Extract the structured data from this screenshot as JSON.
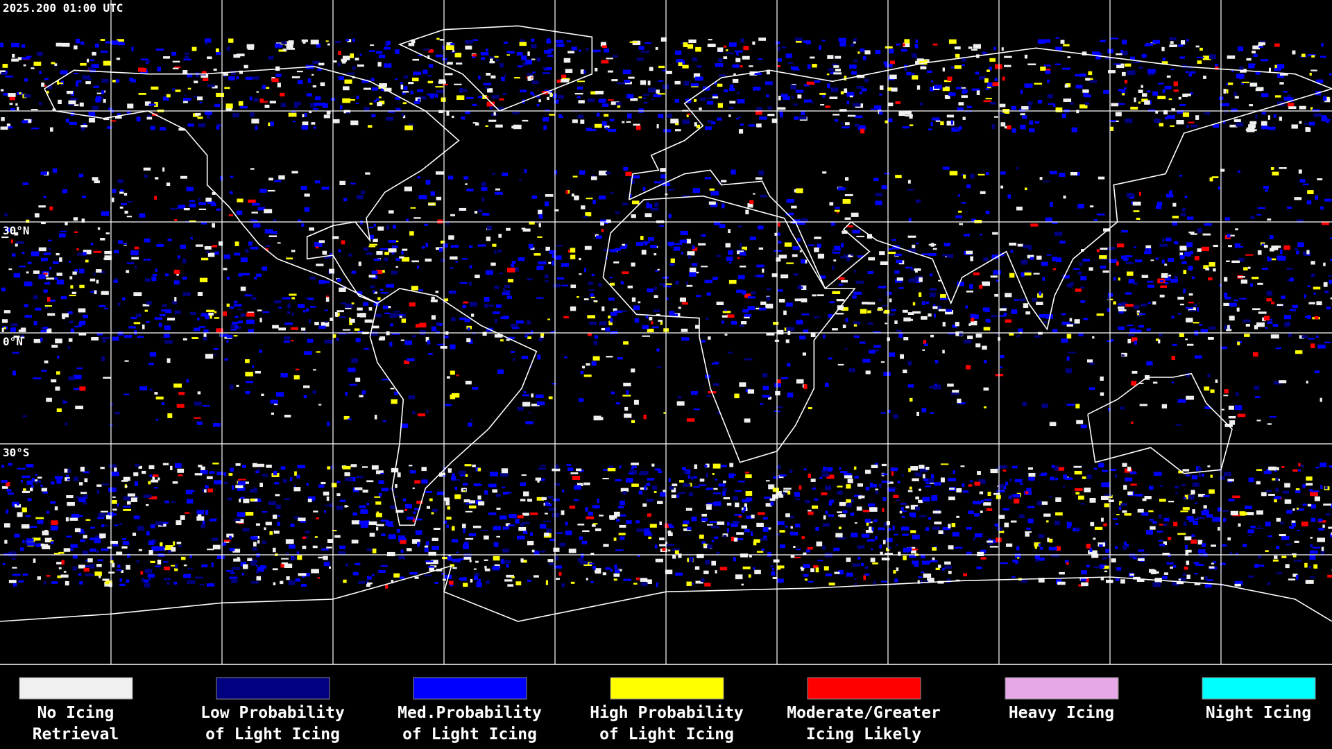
{
  "timestamp": "2025.200 01:00 UTC",
  "latitude_labels": [
    "30°N",
    "0°N",
    "30°S"
  ],
  "legend": [
    {
      "label": [
        "No Icing",
        "Retrieval"
      ],
      "color": "#f0f0f0"
    },
    {
      "label": [
        "Low Probability",
        "of Light Icing"
      ],
      "color": "#000080"
    },
    {
      "label": [
        "Med.Probability",
        "of Light Icing"
      ],
      "color": "#0000ff"
    },
    {
      "label": [
        "High Probability",
        "of Light Icing"
      ],
      "color": "#ffff00"
    },
    {
      "label": [
        "Moderate/Greater",
        "Icing Likely"
      ],
      "color": "#ff0000"
    },
    {
      "label": [
        "Heavy Icing"
      ],
      "color": "#e6a8e6"
    },
    {
      "label": [
        "Night Icing"
      ],
      "color": "#00ffff"
    }
  ]
}
